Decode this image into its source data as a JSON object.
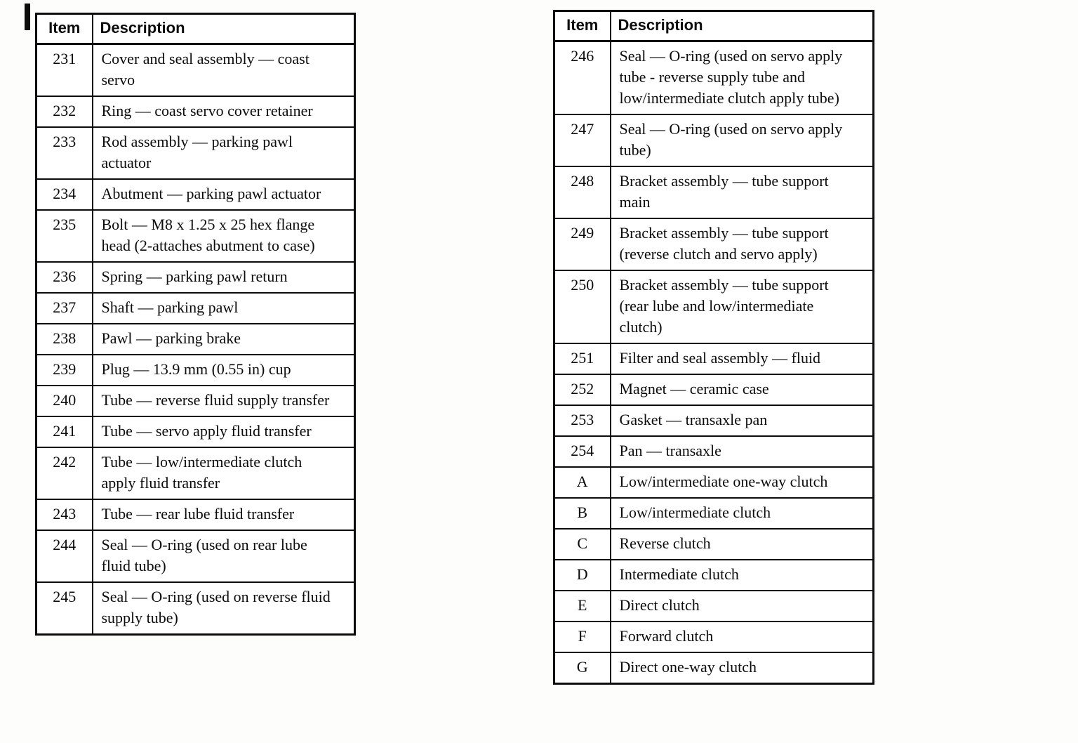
{
  "page": {
    "paper_color": "#ffffff",
    "ink_color": "#0c0c0c"
  },
  "tables": [
    {
      "name": "parts-table-left",
      "headers": {
        "item": "Item",
        "description": "Description"
      },
      "rows": [
        {
          "item": "231",
          "description": "Cover and seal assembly — coast servo"
        },
        {
          "item": "232",
          "description": "Ring — coast servo cover retainer"
        },
        {
          "item": "233",
          "description": "Rod assembly — parking pawl actuator"
        },
        {
          "item": "234",
          "description": "Abutment — parking pawl actuator"
        },
        {
          "item": "235",
          "description": "Bolt — M8 x 1.25 x 25 hex flange head (2-attaches abutment to case)"
        },
        {
          "item": "236",
          "description": "Spring — parking pawl return"
        },
        {
          "item": "237",
          "description": "Shaft — parking pawl"
        },
        {
          "item": "238",
          "description": "Pawl — parking brake"
        },
        {
          "item": "239",
          "description": "Plug — 13.9 mm (0.55 in) cup"
        },
        {
          "item": "240",
          "description": "Tube — reverse fluid supply transfer"
        },
        {
          "item": "241",
          "description": "Tube — servo apply fluid transfer"
        },
        {
          "item": "242",
          "description": "Tube — low/intermediate clutch apply fluid transfer"
        },
        {
          "item": "243",
          "description": "Tube — rear lube fluid transfer"
        },
        {
          "item": "244",
          "description": "Seal — O-ring (used on rear lube fluid tube)"
        },
        {
          "item": "245",
          "description": "Seal — O-ring (used on reverse fluid supply tube)"
        }
      ]
    },
    {
      "name": "parts-table-right",
      "headers": {
        "item": "Item",
        "description": "Description"
      },
      "rows": [
        {
          "item": "246",
          "description": "Seal — O-ring (used on servo apply tube - reverse supply tube and low/intermediate clutch apply tube)"
        },
        {
          "item": "247",
          "description": "Seal — O-ring (used on servo apply tube)"
        },
        {
          "item": "248",
          "description": "Bracket assembly — tube support main"
        },
        {
          "item": "249",
          "description": "Bracket assembly — tube support (reverse clutch and servo apply)"
        },
        {
          "item": "250",
          "description": "Bracket assembly — tube support (rear lube and low/intermediate clutch)"
        },
        {
          "item": "251",
          "description": "Filter and seal assembly — fluid"
        },
        {
          "item": "252",
          "description": "Magnet — ceramic case"
        },
        {
          "item": "253",
          "description": "Gasket — transaxle pan"
        },
        {
          "item": "254",
          "description": "Pan — transaxle"
        },
        {
          "item": "A",
          "description": "Low/intermediate one-way clutch"
        },
        {
          "item": "B",
          "description": "Low/intermediate clutch"
        },
        {
          "item": "C",
          "description": "Reverse clutch"
        },
        {
          "item": "D",
          "description": "Intermediate clutch"
        },
        {
          "item": "E",
          "description": "Direct clutch"
        },
        {
          "item": "F",
          "description": "Forward clutch"
        },
        {
          "item": "G",
          "description": "Direct one-way clutch"
        }
      ]
    }
  ]
}
